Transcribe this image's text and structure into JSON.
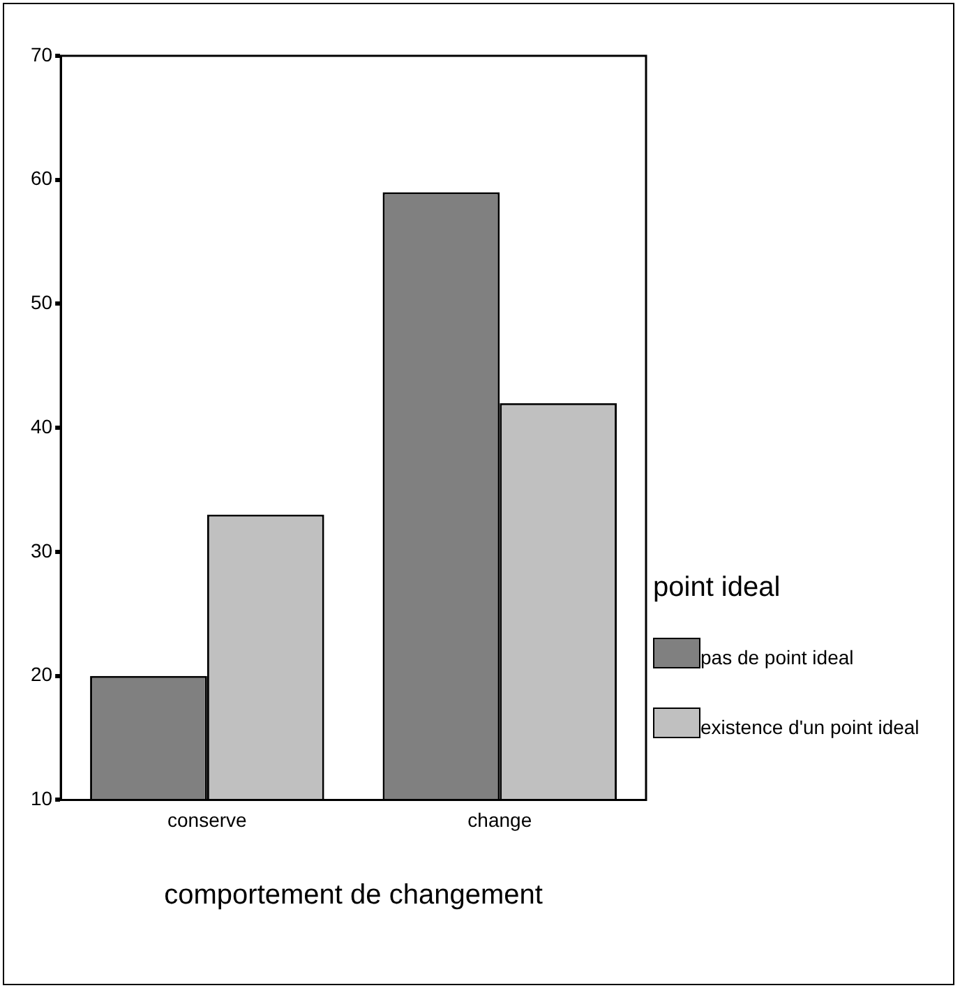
{
  "chart_data": {
    "type": "bar",
    "xlabel": "comportement de changement",
    "legend_title": "point ideal",
    "legend": "right",
    "grid": false,
    "categories": [
      "conserve",
      "change"
    ],
    "series": [
      {
        "name": "pas de point ideal",
        "color": "#808080",
        "values": [
          20,
          59
        ]
      },
      {
        "name": "existence d'un point ideal",
        "color": "#c0c0c0",
        "values": [
          33,
          42
        ]
      }
    ],
    "ylim": [
      10,
      70
    ],
    "yticks": [
      10,
      20,
      30,
      40,
      50,
      60,
      70
    ]
  }
}
